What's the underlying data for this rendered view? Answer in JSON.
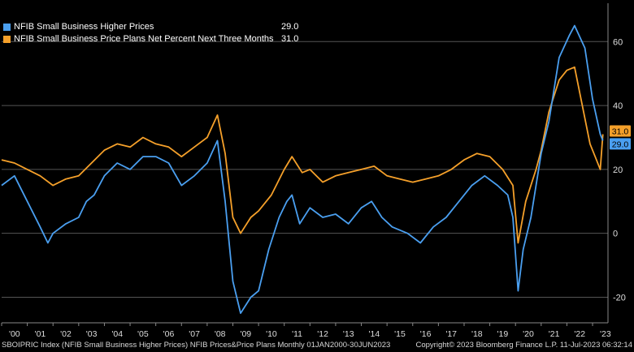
{
  "chart_data": {
    "type": "line",
    "x_labels": [
      "'00",
      "'01",
      "'02",
      "'03",
      "'04",
      "'05",
      "'06",
      "'07",
      "'08",
      "'09",
      "'10",
      "'11",
      "'12",
      "'13",
      "'14",
      "'15",
      "'16",
      "'17",
      "'18",
      "'19",
      "'20",
      "'21",
      "'22",
      "'23"
    ],
    "y_ticks": [
      -20,
      0,
      20,
      40,
      60
    ],
    "ylim": [
      -28,
      72
    ],
    "xlim": [
      2000,
      2023.6
    ],
    "grid": true,
    "legend_placement": "top-left",
    "series": [
      {
        "name": "NFIB Small Business Higher Prices",
        "last": "29.0",
        "color": "#4a9ff0",
        "values": [
          [
            2000.0,
            15
          ],
          [
            2000.5,
            18
          ],
          [
            2001.0,
            10
          ],
          [
            2001.5,
            2
          ],
          [
            2001.8,
            -3
          ],
          [
            2002.0,
            0
          ],
          [
            2002.5,
            3
          ],
          [
            2003.0,
            5
          ],
          [
            2003.3,
            10
          ],
          [
            2003.6,
            12
          ],
          [
            2004.0,
            18
          ],
          [
            2004.5,
            22
          ],
          [
            2005.0,
            20
          ],
          [
            2005.5,
            24
          ],
          [
            2006.0,
            24
          ],
          [
            2006.5,
            22
          ],
          [
            2007.0,
            15
          ],
          [
            2007.5,
            18
          ],
          [
            2008.0,
            22
          ],
          [
            2008.4,
            29
          ],
          [
            2008.7,
            10
          ],
          [
            2009.0,
            -15
          ],
          [
            2009.3,
            -25
          ],
          [
            2009.7,
            -20
          ],
          [
            2010.0,
            -18
          ],
          [
            2010.4,
            -5
          ],
          [
            2010.8,
            5
          ],
          [
            2011.1,
            10
          ],
          [
            2011.3,
            12
          ],
          [
            2011.6,
            3
          ],
          [
            2012.0,
            8
          ],
          [
            2012.5,
            5
          ],
          [
            2013.0,
            6
          ],
          [
            2013.5,
            3
          ],
          [
            2014.0,
            8
          ],
          [
            2014.4,
            10
          ],
          [
            2014.8,
            5
          ],
          [
            2015.2,
            2
          ],
          [
            2015.8,
            0
          ],
          [
            2016.3,
            -3
          ],
          [
            2016.8,
            2
          ],
          [
            2017.3,
            5
          ],
          [
            2017.8,
            10
          ],
          [
            2018.3,
            15
          ],
          [
            2018.8,
            18
          ],
          [
            2019.3,
            15
          ],
          [
            2019.7,
            12
          ],
          [
            2019.9,
            5
          ],
          [
            2020.1,
            -18
          ],
          [
            2020.3,
            -5
          ],
          [
            2020.6,
            5
          ],
          [
            2021.0,
            25
          ],
          [
            2021.3,
            35
          ],
          [
            2021.7,
            55
          ],
          [
            2022.1,
            62
          ],
          [
            2022.3,
            65
          ],
          [
            2022.7,
            58
          ],
          [
            2023.0,
            42
          ],
          [
            2023.3,
            31
          ],
          [
            2023.4,
            29
          ]
        ]
      },
      {
        "name": "NFIB Small Business Price Plans Net Percent Next Three Months",
        "last": "31.0",
        "color": "#f5a02a",
        "values": [
          [
            2000.0,
            23
          ],
          [
            2000.5,
            22
          ],
          [
            2001.0,
            20
          ],
          [
            2001.5,
            18
          ],
          [
            2002.0,
            15
          ],
          [
            2002.5,
            17
          ],
          [
            2003.0,
            18
          ],
          [
            2003.5,
            22
          ],
          [
            2004.0,
            26
          ],
          [
            2004.5,
            28
          ],
          [
            2005.0,
            27
          ],
          [
            2005.5,
            30
          ],
          [
            2006.0,
            28
          ],
          [
            2006.5,
            27
          ],
          [
            2007.0,
            24
          ],
          [
            2007.5,
            27
          ],
          [
            2008.0,
            30
          ],
          [
            2008.4,
            37
          ],
          [
            2008.7,
            25
          ],
          [
            2009.0,
            5
          ],
          [
            2009.3,
            0
          ],
          [
            2009.7,
            5
          ],
          [
            2010.0,
            7
          ],
          [
            2010.5,
            12
          ],
          [
            2011.0,
            20
          ],
          [
            2011.3,
            24
          ],
          [
            2011.7,
            19
          ],
          [
            2012.0,
            20
          ],
          [
            2012.5,
            16
          ],
          [
            2013.0,
            18
          ],
          [
            2013.5,
            19
          ],
          [
            2014.0,
            20
          ],
          [
            2014.5,
            21
          ],
          [
            2015.0,
            18
          ],
          [
            2015.5,
            17
          ],
          [
            2016.0,
            16
          ],
          [
            2016.5,
            17
          ],
          [
            2017.0,
            18
          ],
          [
            2017.5,
            20
          ],
          [
            2018.0,
            23
          ],
          [
            2018.5,
            25
          ],
          [
            2019.0,
            24
          ],
          [
            2019.5,
            20
          ],
          [
            2019.9,
            15
          ],
          [
            2020.1,
            -3
          ],
          [
            2020.4,
            10
          ],
          [
            2020.8,
            20
          ],
          [
            2021.0,
            26
          ],
          [
            2021.3,
            38
          ],
          [
            2021.7,
            48
          ],
          [
            2022.0,
            51
          ],
          [
            2022.3,
            52
          ],
          [
            2022.6,
            40
          ],
          [
            2022.9,
            28
          ],
          [
            2023.1,
            24
          ],
          [
            2023.3,
            20
          ],
          [
            2023.4,
            31
          ]
        ]
      }
    ]
  },
  "footer": {
    "left": "SBOIPRIC Index (NFIB Small Business Higher Prices) NFIB Prices&Price Plans  Monthly 01JAN2000-30JUN2023",
    "right": "Copyright© 2023 Bloomberg Finance L.P.     11-Jul-2023 06:32:14"
  }
}
